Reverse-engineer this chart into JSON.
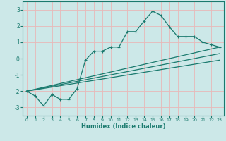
{
  "xlabel": "Humidex (Indice chaleur)",
  "bg_color": "#cce8e8",
  "grid_color": "#e8b8b8",
  "line_color": "#1a7a6e",
  "xlim": [
    -0.5,
    23.5
  ],
  "ylim": [
    -3.5,
    3.5
  ],
  "yticks": [
    -3,
    -2,
    -1,
    0,
    1,
    2,
    3
  ],
  "xticks": [
    0,
    1,
    2,
    3,
    4,
    5,
    6,
    7,
    8,
    9,
    10,
    11,
    12,
    13,
    14,
    15,
    16,
    17,
    18,
    19,
    20,
    21,
    22,
    23
  ],
  "curve1_x": [
    0,
    1,
    2,
    3,
    4,
    5,
    6,
    7,
    8,
    9,
    10,
    11,
    12,
    13,
    14,
    15,
    16,
    17,
    18,
    19,
    20,
    21,
    22,
    23
  ],
  "curve1_y": [
    -2.0,
    -2.3,
    -2.9,
    -2.2,
    -2.5,
    -2.5,
    -1.85,
    -0.1,
    0.45,
    0.45,
    0.7,
    0.7,
    1.65,
    1.65,
    2.3,
    2.9,
    2.65,
    1.95,
    1.35,
    1.35,
    1.35,
    1.0,
    0.85,
    0.7
  ],
  "line1_x": [
    0,
    23
  ],
  "line1_y": [
    -2.0,
    0.7
  ],
  "line2_x": [
    0,
    23
  ],
  "line2_y": [
    -2.0,
    0.3
  ],
  "line3_x": [
    0,
    23
  ],
  "line3_y": [
    -2.0,
    -0.1
  ]
}
